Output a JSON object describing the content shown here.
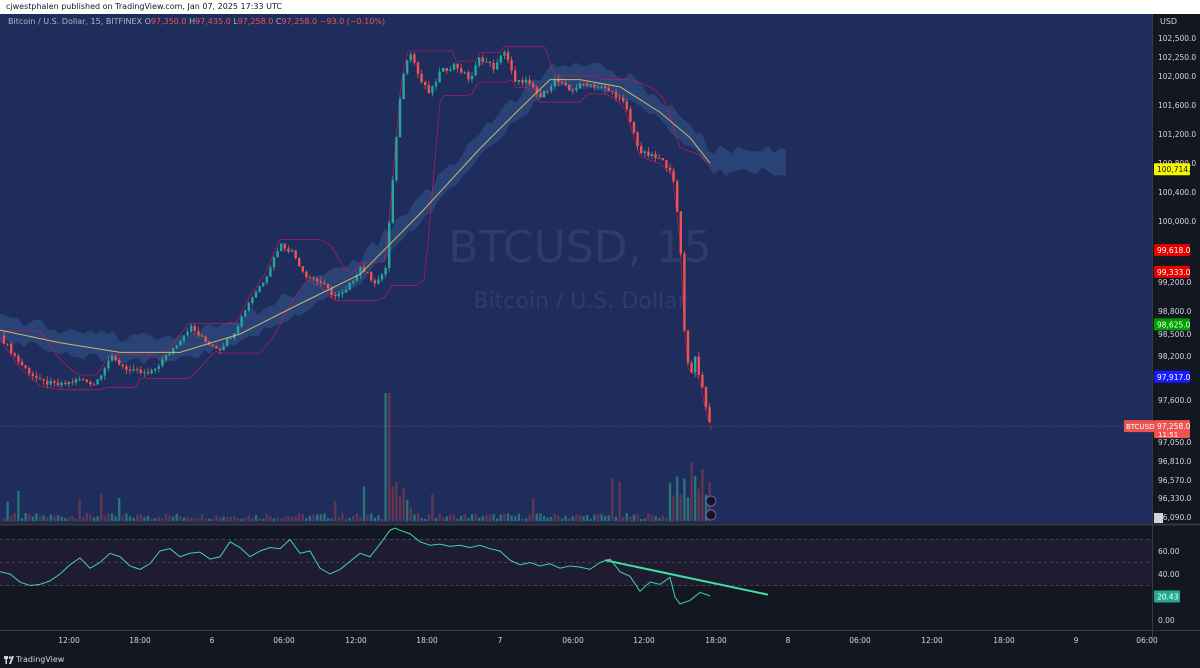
{
  "header": {
    "publisher": "cjwestphalen published on TradingView.com, Jan 07, 2025 17:33 UTC"
  },
  "legend": {
    "symbol": "Bitcoin / U.S. Dollar, 15, BITFINEX",
    "open_label": "O",
    "open": "97,350.0",
    "high_label": "H",
    "high": "97,435.0",
    "low_label": "L",
    "low": "97,258.0",
    "close_label": "C",
    "close": "97,258.0",
    "change": "−93.0 (−0.10%)"
  },
  "watermark": {
    "symbol": "BTCUSD, 15",
    "name": "Bitcoin / U.S. Dollar"
  },
  "footer": {
    "brand": "TradingView"
  },
  "colors": {
    "bg": "#1e2d5c",
    "up": "#26a69a",
    "down": "#ef5350",
    "ma": "#c9b76b",
    "rsi": "#3fd6a4",
    "trend": "#3fe0a0"
  },
  "chart_data": [
    {
      "type": "candlestick",
      "series_count": 1,
      "y_axis_title": "USD",
      "y_ticks": [
        "102,500.0",
        "102,250.0",
        "102,000.0",
        "101,600.0",
        "101,200.0",
        "100,800.0",
        "100,400.0",
        "100,000.0",
        "99,200.0",
        "98,800.0",
        "98,500.0",
        "98,200.0",
        "97,600.0",
        "97,050.0",
        "96,810.0",
        "96,570.0",
        "96,330.0",
        "96,090.0"
      ],
      "y_tick_values": [
        102500,
        102250,
        102000,
        101600,
        101200,
        100800,
        100400,
        100000,
        99200,
        98800,
        98500,
        98200,
        97600,
        97050,
        96810,
        96570,
        96330,
        96090
      ],
      "ylim": [
        96000,
        102700
      ],
      "price_labels": [
        {
          "text": "100,714.5",
          "value": 100714.5,
          "color": "#f5f500",
          "text_color": "#131722"
        },
        {
          "text": "99,618.0",
          "value": 99618.0,
          "color": "#e60000",
          "text_color": "#ffffff"
        },
        {
          "text": "99,333.0",
          "value": 99333.0,
          "color": "#e60000",
          "text_color": "#ffffff"
        },
        {
          "text": "98,625.0",
          "value": 98625.0,
          "color": "#00a000",
          "text_color": "#ffffff"
        },
        {
          "text": "97,917.0",
          "value": 97917.0,
          "color": "#1a1aff",
          "text_color": "#ffffff"
        }
      ],
      "last_price": {
        "symbol": "BTCUSD",
        "text": "97,258.0",
        "countdown": "11:51",
        "value": 97258.0
      },
      "x_ticks": [
        "12:00",
        "18:00",
        "6",
        "06:00",
        "12:00",
        "18:00",
        "7",
        "06:00",
        "12:00",
        "18:00",
        "8",
        "06:00",
        "12:00",
        "18:00",
        "9",
        "06:00"
      ],
      "close_path": [
        [
          0,
          98480
        ],
        [
          20,
          98100
        ],
        [
          40,
          97850
        ],
        [
          60,
          97800
        ],
        [
          80,
          97880
        ],
        [
          95,
          97820
        ],
        [
          110,
          98180
        ],
        [
          130,
          98000
        ],
        [
          150,
          97950
        ],
        [
          170,
          98250
        ],
        [
          190,
          98600
        ],
        [
          205,
          98400
        ],
        [
          220,
          98300
        ],
        [
          235,
          98550
        ],
        [
          250,
          98950
        ],
        [
          265,
          99250
        ],
        [
          280,
          99700
        ],
        [
          292,
          99600
        ],
        [
          305,
          99300
        ],
        [
          320,
          99200
        ],
        [
          335,
          99000
        ],
        [
          345,
          99050
        ],
        [
          360,
          99400
        ],
        [
          375,
          99200
        ],
        [
          385,
          99300
        ],
        [
          395,
          100900
        ],
        [
          400,
          101700
        ],
        [
          405,
          102150
        ],
        [
          410,
          102350
        ],
        [
          420,
          101950
        ],
        [
          430,
          101750
        ],
        [
          440,
          102050
        ],
        [
          455,
          102150
        ],
        [
          470,
          101950
        ],
        [
          480,
          102250
        ],
        [
          495,
          102100
        ],
        [
          505,
          102350
        ],
        [
          515,
          101900
        ],
        [
          525,
          101950
        ],
        [
          540,
          101700
        ],
        [
          555,
          101950
        ],
        [
          570,
          101800
        ],
        [
          585,
          101900
        ],
        [
          600,
          101850
        ],
        [
          615,
          101750
        ],
        [
          625,
          101600
        ],
        [
          640,
          100950
        ],
        [
          650,
          100900
        ],
        [
          660,
          100850
        ],
        [
          672,
          100700
        ],
        [
          680,
          99800
        ],
        [
          685,
          98400
        ],
        [
          690,
          97900
        ],
        [
          695,
          98200
        ],
        [
          700,
          97900
        ],
        [
          706,
          97500
        ],
        [
          711,
          97258
        ]
      ],
      "ma_path": [
        [
          0,
          98550
        ],
        [
          60,
          98380
        ],
        [
          120,
          98250
        ],
        [
          180,
          98250
        ],
        [
          240,
          98500
        ],
        [
          300,
          98900
        ],
        [
          360,
          99300
        ],
        [
          420,
          100100
        ],
        [
          480,
          101000
        ],
        [
          520,
          101550
        ],
        [
          550,
          101950
        ],
        [
          580,
          101950
        ],
        [
          620,
          101850
        ],
        [
          660,
          101500
        ],
        [
          690,
          101150
        ],
        [
          710,
          100800
        ]
      ],
      "volume": {
        "max_bar_x": 388
      }
    },
    {
      "type": "line",
      "series_count": 1,
      "indicator": "RSI",
      "y_ticks": [
        "60.00",
        "40.00",
        "20.00",
        "0.00"
      ],
      "y_tick_values": [
        60,
        40,
        20,
        0
      ],
      "ylim": [
        0,
        80
      ],
      "band": [
        30,
        70
      ],
      "midline": 50,
      "current_value": "20.43",
      "current": 20.43,
      "rsi_path": [
        [
          0,
          42
        ],
        [
          10,
          40
        ],
        [
          20,
          33
        ],
        [
          30,
          30
        ],
        [
          40,
          31
        ],
        [
          50,
          34
        ],
        [
          60,
          40
        ],
        [
          70,
          48
        ],
        [
          80,
          54
        ],
        [
          90,
          45
        ],
        [
          100,
          50
        ],
        [
          110,
          58
        ],
        [
          120,
          55
        ],
        [
          130,
          47
        ],
        [
          140,
          44
        ],
        [
          150,
          49
        ],
        [
          160,
          60
        ],
        [
          170,
          62
        ],
        [
          180,
          55
        ],
        [
          190,
          58
        ],
        [
          200,
          59
        ],
        [
          210,
          53
        ],
        [
          220,
          55
        ],
        [
          230,
          68
        ],
        [
          240,
          63
        ],
        [
          250,
          55
        ],
        [
          260,
          60
        ],
        [
          270,
          63
        ],
        [
          280,
          62
        ],
        [
          290,
          70
        ],
        [
          300,
          58
        ],
        [
          310,
          60
        ],
        [
          320,
          45
        ],
        [
          330,
          40
        ],
        [
          340,
          44
        ],
        [
          350,
          51
        ],
        [
          360,
          58
        ],
        [
          370,
          55
        ],
        [
          380,
          66
        ],
        [
          390,
          78
        ],
        [
          395,
          80
        ],
        [
          400,
          78
        ],
        [
          410,
          75
        ],
        [
          420,
          68
        ],
        [
          430,
          65
        ],
        [
          440,
          66
        ],
        [
          450,
          64
        ],
        [
          460,
          65
        ],
        [
          470,
          63
        ],
        [
          480,
          65
        ],
        [
          490,
          62
        ],
        [
          500,
          60
        ],
        [
          510,
          52
        ],
        [
          520,
          48
        ],
        [
          530,
          50
        ],
        [
          540,
          47
        ],
        [
          550,
          49
        ],
        [
          560,
          45
        ],
        [
          570,
          47
        ],
        [
          580,
          46
        ],
        [
          590,
          44
        ],
        [
          600,
          50
        ],
        [
          610,
          53
        ],
        [
          620,
          42
        ],
        [
          630,
          38
        ],
        [
          640,
          25
        ],
        [
          650,
          33
        ],
        [
          660,
          31
        ],
        [
          670,
          37
        ],
        [
          675,
          20
        ],
        [
          680,
          14
        ],
        [
          690,
          17
        ],
        [
          700,
          24
        ],
        [
          710,
          21
        ]
      ],
      "trendline": [
        [
          605,
          52
        ],
        [
          768,
          22
        ]
      ]
    }
  ]
}
